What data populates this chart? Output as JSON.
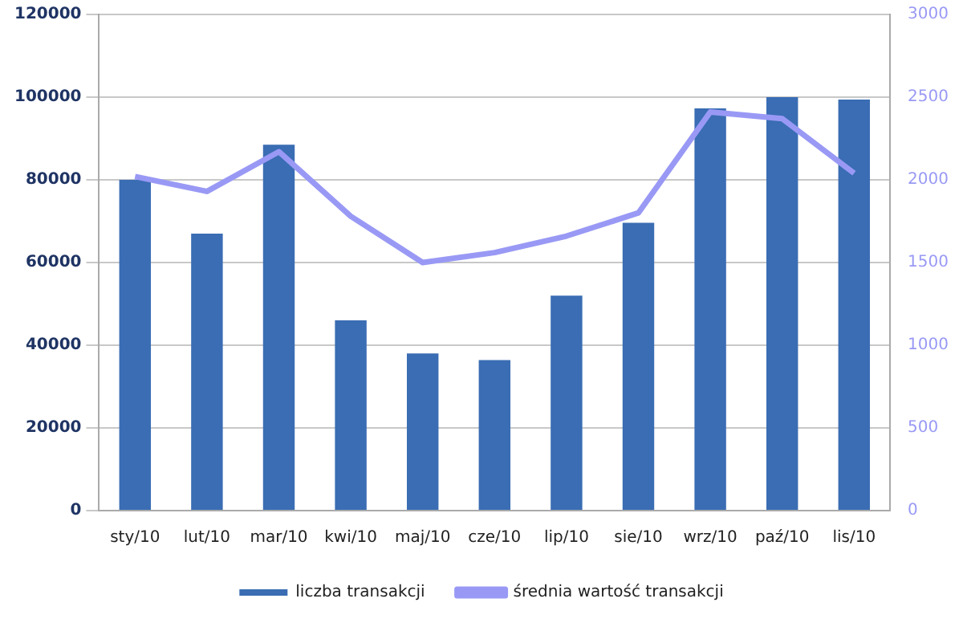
{
  "chart_data": {
    "type": "bar",
    "categories": [
      "sty/10",
      "lut/10",
      "mar/10",
      "kwi/10",
      "maj/10",
      "cze/10",
      "lip/10",
      "sie/10",
      "wrz/10",
      "paź/10",
      "lis/10"
    ],
    "series": [
      {
        "name": "liczba transakcji",
        "color": "#3a6db3",
        "values": [
          80000,
          67000,
          88500,
          46000,
          38000,
          36400,
          52000,
          69600,
          97300,
          100000,
          99400
        ]
      },
      {
        "name": "średnia wartość transakcji",
        "type": "line",
        "axis": "y2",
        "color": "#9999f5",
        "values": [
          2020,
          1930,
          2170,
          1780,
          1500,
          1560,
          1660,
          1800,
          2410,
          2370,
          2040
        ]
      }
    ],
    "ylim": [
      0,
      120000
    ],
    "yticks": [
      0,
      20000,
      40000,
      60000,
      80000,
      100000,
      120000
    ],
    "y2lim": [
      0,
      3000
    ],
    "y2ticks": [
      0,
      500,
      1000,
      1500,
      2000,
      2500,
      3000
    ],
    "grid": "y",
    "legend": "bottom",
    "marker": "none",
    "line_style": "solid"
  }
}
